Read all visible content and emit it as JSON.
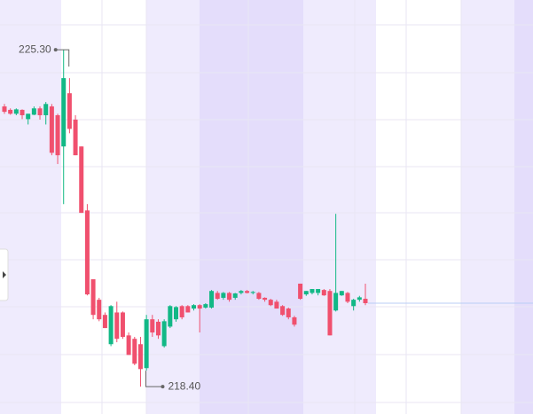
{
  "chart_data": {
    "type": "candlestick",
    "up_color": "#12b886",
    "down_color": "#f0506e",
    "ylim": [
      217.84,
      226.32
    ],
    "open": [
      224.14,
      224.07,
      223.99,
      224.07,
      223.88,
      223.97,
      224.1,
      223.96,
      224.14,
      223.96,
      223.32,
      224.41,
      223.87,
      223.32,
      222.01,
      220.6,
      220.18,
      219.87,
      219.27,
      219.92,
      219.92,
      219.45,
      219.38,
      219.27,
      218.78,
      219.78,
      219.73,
      219.23,
      219.63,
      219.78,
      220.05,
      220.05,
      220.0,
      220.07,
      220.02,
      220.02,
      220.32,
      220.22,
      220.32,
      220.22,
      220.32,
      220.36,
      220.32,
      220.32,
      220.22,
      220.18,
      220.14,
      220.05,
      220.0,
      219.82,
      220.51,
      220.29,
      220.32,
      220.32,
      220.38,
      220.36,
      219.96,
      220.27,
      220.32,
      220.05,
      220.18,
      220.2
    ],
    "high": [
      224.19,
      224.1,
      224.1,
      224.08,
      223.99,
      224.14,
      224.14,
      224.23,
      224.19,
      223.99,
      225.3,
      224.72,
      223.96,
      223.32,
      222.14,
      220.6,
      220.22,
      219.92,
      220.07,
      220.14,
      219.94,
      219.51,
      219.42,
      219.42,
      219.87,
      219.87,
      219.78,
      219.78,
      220.07,
      220.05,
      220.07,
      220.07,
      220.09,
      220.09,
      220.11,
      220.38,
      220.36,
      220.34,
      220.34,
      220.32,
      220.38,
      220.38,
      220.36,
      220.34,
      220.23,
      220.2,
      220.18,
      220.07,
      220.02,
      219.85,
      220.51,
      220.36,
      220.4,
      220.4,
      220.4,
      220.4,
      221.94,
      220.36,
      220.34,
      220.2,
      220.26,
      220.51
    ],
    "low": [
      223.99,
      223.97,
      223.96,
      223.88,
      223.77,
      223.96,
      223.87,
      223.77,
      223.14,
      222.96,
      222.14,
      223.59,
      223.14,
      221.96,
      220.27,
      219.78,
      219.74,
      219.6,
      219.23,
      219.31,
      219.38,
      219.05,
      218.84,
      218.4,
      218.73,
      219.42,
      219.38,
      219.2,
      219.6,
      219.73,
      219.78,
      219.92,
      219.96,
      219.51,
      220.0,
      220.0,
      220.18,
      220.18,
      220.14,
      220.18,
      220.29,
      220.31,
      220.29,
      220.18,
      220.14,
      220.05,
      220.0,
      219.85,
      219.78,
      219.63,
      220.18,
      220.26,
      220.29,
      220.27,
      220.26,
      219.45,
      219.94,
      220.26,
      220.11,
      219.96,
      220.14,
      220.07
    ],
    "close": [
      224.03,
      223.99,
      224.08,
      223.96,
      223.99,
      224.1,
      223.96,
      224.19,
      223.19,
      223.14,
      224.72,
      223.68,
      223.14,
      221.96,
      220.29,
      219.87,
      219.78,
      219.6,
      220.05,
      219.38,
      219.42,
      219.05,
      218.87,
      218.76,
      219.78,
      219.51,
      219.45,
      219.74,
      220.05,
      220.03,
      219.82,
      219.92,
      220.07,
      220.0,
      220.09,
      220.36,
      220.2,
      220.32,
      220.18,
      220.31,
      220.36,
      220.32,
      220.34,
      220.2,
      220.18,
      220.07,
      220.0,
      219.87,
      219.82,
      219.67,
      220.2,
      220.36,
      220.4,
      220.4,
      220.27,
      219.45,
      220.32,
      220.36,
      220.14,
      220.18,
      220.23,
      220.11
    ],
    "annotations": [
      {
        "value": 225.3,
        "label": "225.30"
      },
      {
        "value": 218.4,
        "label": "218.40"
      }
    ]
  }
}
